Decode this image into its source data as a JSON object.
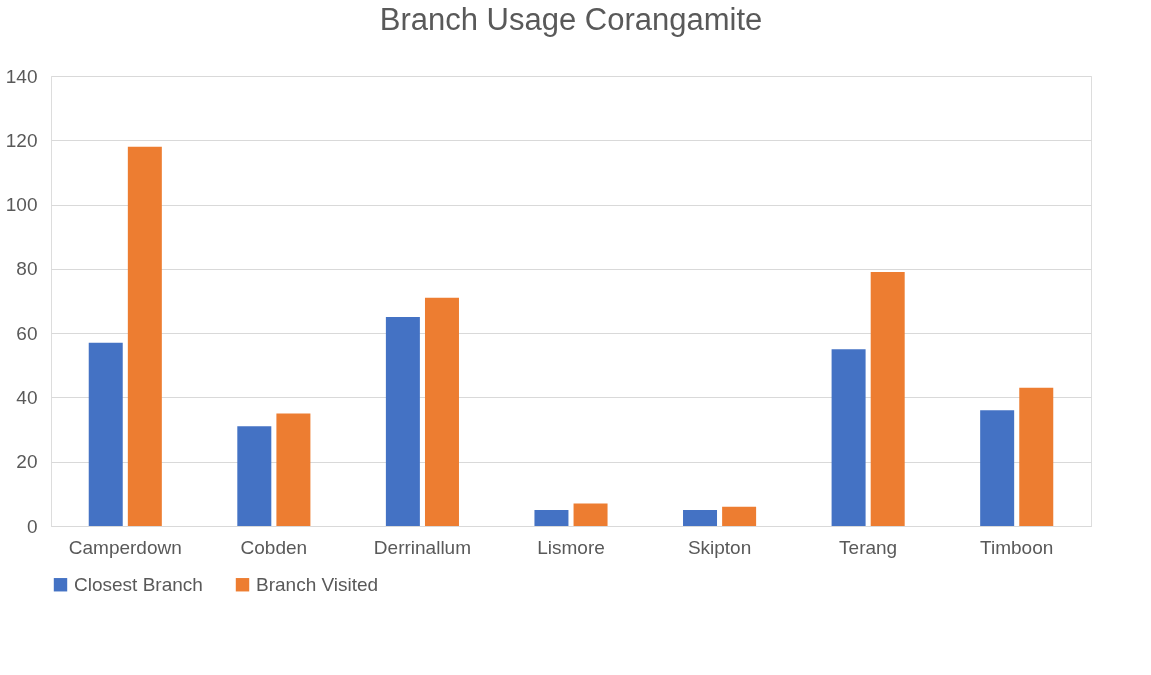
{
  "chart_data": {
    "type": "bar",
    "title": "Branch Usage Corangamite",
    "categories": [
      "Camperdown",
      "Cobden",
      "Derrinallum",
      "Lismore",
      "Skipton",
      "Terang",
      "Timboon"
    ],
    "series": [
      {
        "name": "Closest Branch",
        "color": "#4472c4",
        "values": [
          57,
          31,
          65,
          5,
          5,
          55,
          36
        ]
      },
      {
        "name": "Branch Visited",
        "color": "#ed7d31",
        "values": [
          118,
          35,
          71,
          7,
          6,
          79,
          43
        ]
      }
    ],
    "ylim": [
      0,
      140
    ],
    "yticks": [
      0,
      20,
      40,
      60,
      80,
      100,
      120,
      140
    ],
    "grid": "y",
    "legend": "bottom"
  }
}
